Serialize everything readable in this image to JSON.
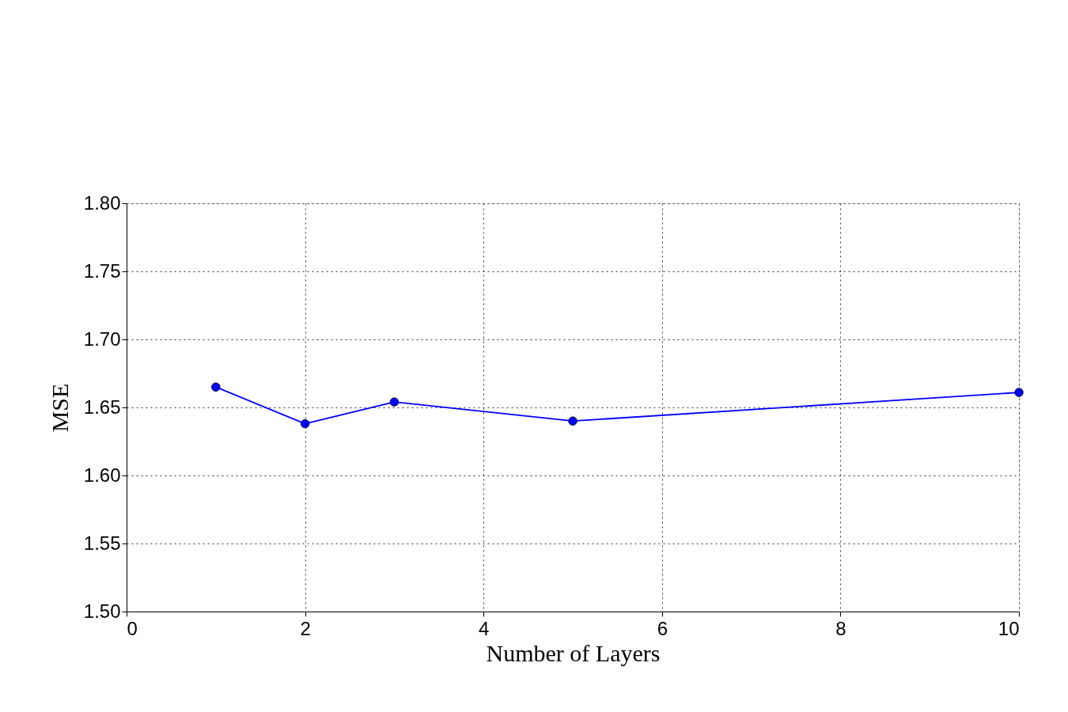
{
  "chart_data": {
    "type": "line",
    "xlabel": "Number of Layers",
    "ylabel": "MSE",
    "x": [
      1,
      2,
      3,
      5,
      10
    ],
    "series": [
      {
        "color": "#0000ff",
        "values": [
          1.665,
          1.638,
          1.654,
          1.64,
          1.661
        ]
      }
    ],
    "xlim": [
      0,
      10
    ],
    "xticks": [
      0,
      2,
      4,
      6,
      8,
      10
    ],
    "ylim": [
      1.5,
      1.8
    ],
    "yticks": [
      {
        "value": 1.5,
        "label": "1.50"
      },
      {
        "value": 1.55,
        "label": "1.55"
      },
      {
        "value": 1.6,
        "label": "1.60"
      },
      {
        "value": 1.65,
        "label": "1.65"
      },
      {
        "value": 1.7,
        "label": "1.70"
      },
      {
        "value": 1.75,
        "label": "1.75"
      },
      {
        "value": 1.8,
        "label": "1.80"
      }
    ],
    "grid": true,
    "marker": "circle",
    "line_style": "solid"
  }
}
